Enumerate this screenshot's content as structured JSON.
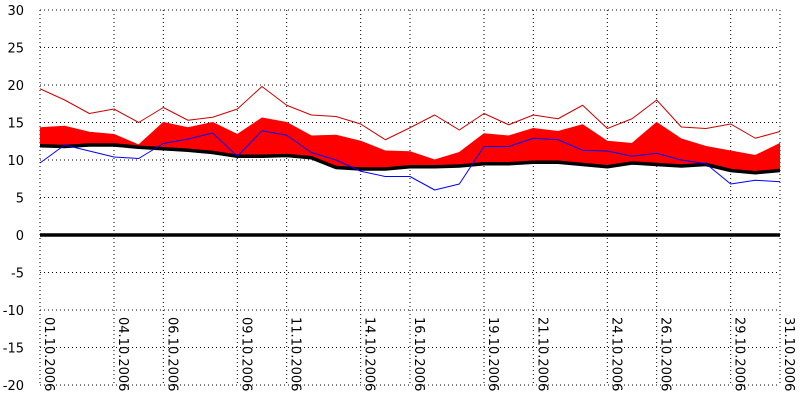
{
  "chart_data": {
    "type": "area",
    "title": "",
    "xlabel": "",
    "ylabel": "",
    "ylim": [
      -20,
      30
    ],
    "xlim": [
      "01.10.2006",
      "31.10.2006"
    ],
    "y_ticks": [
      30,
      25,
      20,
      15,
      10,
      5,
      0,
      -5,
      -10,
      -15,
      -20
    ],
    "x_ticks": [
      "01.10.2006",
      "04.10.2006",
      "06.10.2006",
      "09.10.2006",
      "11.10.2006",
      "14.10.2006",
      "16.10.2006",
      "19.10.2006",
      "21.10.2006",
      "24.10.2006",
      "26.10.2006",
      "29.10.2006",
      "31.10.2006"
    ],
    "grid": true,
    "legend": "none",
    "x": [
      "01.10.2006",
      "02.10.2006",
      "03.10.2006",
      "04.10.2006",
      "05.10.2006",
      "06.10.2006",
      "07.10.2006",
      "08.10.2006",
      "09.10.2006",
      "10.10.2006",
      "11.10.2006",
      "12.10.2006",
      "13.10.2006",
      "14.10.2006",
      "15.10.2006",
      "16.10.2006",
      "17.10.2006",
      "18.10.2006",
      "19.10.2006",
      "20.10.2006",
      "21.10.2006",
      "22.10.2006",
      "23.10.2006",
      "24.10.2006",
      "25.10.2006",
      "26.10.2006",
      "27.10.2006",
      "28.10.2006",
      "29.10.2006",
      "30.10.2006",
      "31.10.2006"
    ],
    "series": [
      {
        "color": "#cc0000",
        "values": [
          19.5,
          18,
          16.2,
          16.8,
          15,
          17,
          15.3,
          15.7,
          16.8,
          19.8,
          17.3,
          16,
          15.8,
          14.8,
          12.7,
          14.3,
          16,
          14,
          16.2,
          14.7,
          16,
          15.5,
          17.3,
          14.2,
          15.5,
          18,
          14.4,
          14.2,
          14.8,
          12.9,
          13.8
        ]
      },
      {
        "color": "#ff0000",
        "values": [
          14.3,
          14.5,
          13.7,
          13.4,
          12,
          15,
          14.3,
          15,
          13.4,
          15.6,
          15,
          13.2,
          13.3,
          12.5,
          11.2,
          11.1,
          10,
          11,
          13.5,
          13.2,
          14.2,
          13.8,
          14.7,
          12.5,
          12.2,
          15,
          12.8,
          11.8,
          11.2,
          10.6,
          12.2
        ]
      },
      {
        "color": "#000000",
        "values": [
          11.9,
          11.8,
          12,
          12,
          11.7,
          11.5,
          11.3,
          11,
          10.5,
          10.5,
          10.6,
          10.3,
          9,
          8.8,
          8.8,
          9.1,
          9.1,
          9.2,
          9.5,
          9.5,
          9.7,
          9.7,
          9.4,
          9.1,
          9.6,
          9.4,
          9.2,
          9.4,
          8.6,
          8.3,
          8.6
        ]
      },
      {
        "color": "#0000ff",
        "values": [
          9.6,
          12,
          11.2,
          10.4,
          10.2,
          12.2,
          12.8,
          13.6,
          10.5,
          13.9,
          13.3,
          11,
          10,
          8.5,
          7.8,
          7.8,
          6,
          6.8,
          11.8,
          11.8,
          12.9,
          12.7,
          11.3,
          11.2,
          10.5,
          10.9,
          10,
          9.5,
          6.8,
          7.3,
          7.1
        ]
      }
    ]
  }
}
